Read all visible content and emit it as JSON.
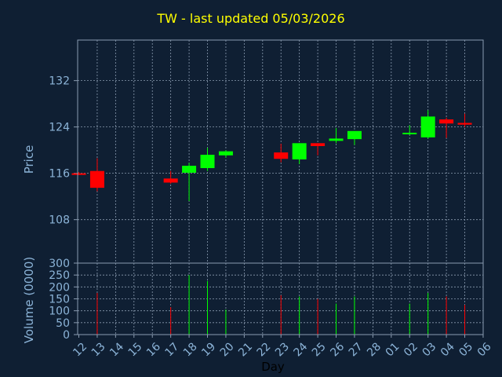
{
  "chart_data": {
    "type": "candlestick",
    "title": "TW - last updated 05/03/2026",
    "price_axis": {
      "label": "Price",
      "ticks": [
        108,
        116,
        124,
        132
      ],
      "ylim": [
        100.5,
        139
      ]
    },
    "volume_axis": {
      "label": "Volume (0000)",
      "ticks": [
        0,
        50,
        100,
        150,
        200,
        250,
        300
      ],
      "ylim": [
        0,
        300
      ]
    },
    "xlabel": "Day",
    "x_tick_labels": [
      "12",
      "13",
      "14",
      "15",
      "16",
      "17",
      "18",
      "19",
      "20",
      "21",
      "22",
      "23",
      "24",
      "25",
      "26",
      "27",
      "28",
      "01",
      "02",
      "03",
      "04",
      "05",
      "06"
    ],
    "grid": true,
    "colors": {
      "up": "#00ff00",
      "down": "#ff0000",
      "grid": "#8a9bb0",
      "text": "#8cb4d8",
      "title": "#ffff00",
      "background": "#0f1f33"
    },
    "candles": [
      {
        "day": "12",
        "open": 116.0,
        "high": 116.2,
        "low": 115.7,
        "close": 115.9,
        "volume": 0
      },
      {
        "day": "13",
        "open": 116.4,
        "high": 118.6,
        "low": 112.9,
        "close": 113.5,
        "volume": 175
      },
      {
        "day": "17",
        "open": 115.1,
        "high": 116.4,
        "low": 114.2,
        "close": 114.4,
        "volume": 115
      },
      {
        "day": "18",
        "open": 116.1,
        "high": 117.8,
        "low": 111.2,
        "close": 117.3,
        "volume": 250
      },
      {
        "day": "19",
        "open": 116.9,
        "high": 120.4,
        "low": 116.4,
        "close": 119.2,
        "volume": 225
      },
      {
        "day": "20",
        "open": 119.1,
        "high": 120.0,
        "low": 118.7,
        "close": 119.8,
        "volume": 105
      },
      {
        "day": "23",
        "open": 119.6,
        "high": 121.1,
        "low": 117.9,
        "close": 118.5,
        "volume": 165
      },
      {
        "day": "24",
        "open": 118.4,
        "high": 121.2,
        "low": 117.6,
        "close": 121.2,
        "volume": 160
      },
      {
        "day": "25",
        "open": 121.2,
        "high": 121.2,
        "low": 119.1,
        "close": 120.7,
        "volume": 150
      },
      {
        "day": "26",
        "open": 121.6,
        "high": 123.8,
        "low": 121.2,
        "close": 122.0,
        "volume": 130
      },
      {
        "day": "27",
        "open": 121.9,
        "high": 123.3,
        "low": 120.9,
        "close": 123.3,
        "volume": 160
      },
      {
        "day": "02",
        "open": 122.8,
        "high": 124.3,
        "low": 122.6,
        "close": 123.0,
        "volume": 130
      },
      {
        "day": "03",
        "open": 122.2,
        "high": 126.9,
        "low": 122.0,
        "close": 125.8,
        "volume": 175
      },
      {
        "day": "04",
        "open": 125.3,
        "high": 125.6,
        "low": 122.1,
        "close": 124.6,
        "volume": 160
      },
      {
        "day": "05",
        "open": 124.7,
        "high": 126.3,
        "low": 124.0,
        "close": 124.4,
        "volume": 125
      }
    ]
  }
}
